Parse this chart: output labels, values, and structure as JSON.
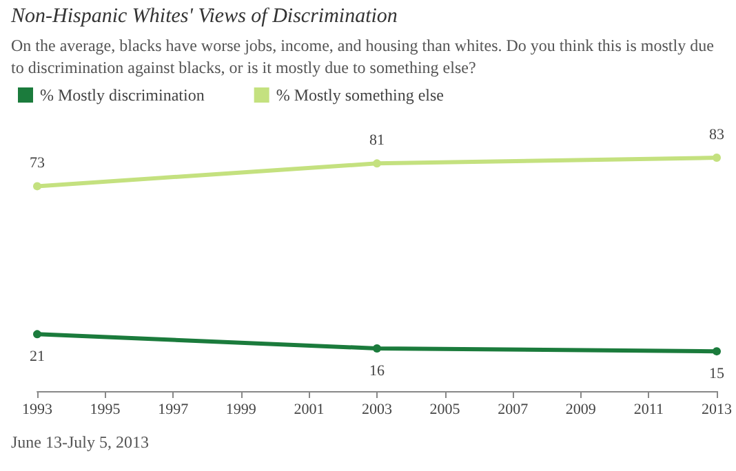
{
  "chart_data": {
    "type": "line",
    "title": "Non-Hispanic Whites' Views of Discrimination",
    "subtitle": "On the average, blacks have worse jobs, income, and housing than whites. Do you think this is mostly due to discrimination against blacks, or is it mostly due to something else?",
    "x": [
      1993,
      2003,
      2013
    ],
    "series": [
      {
        "name": "% Mostly discrimination",
        "color": "#1b7b3c",
        "values": [
          21,
          16,
          15
        ]
      },
      {
        "name": "% Mostly something else",
        "color": "#c4e17f",
        "values": [
          73,
          81,
          83
        ]
      }
    ],
    "xlim": [
      1993,
      2013
    ],
    "xticks": [
      1993,
      1995,
      1997,
      1999,
      2001,
      2003,
      2005,
      2007,
      2009,
      2011,
      2013
    ],
    "data_labels": true,
    "legend": "top left",
    "grid": false,
    "marker": "circle",
    "tick_labels": "x",
    "annotations": [
      "June 13-July 5, 2013"
    ]
  }
}
